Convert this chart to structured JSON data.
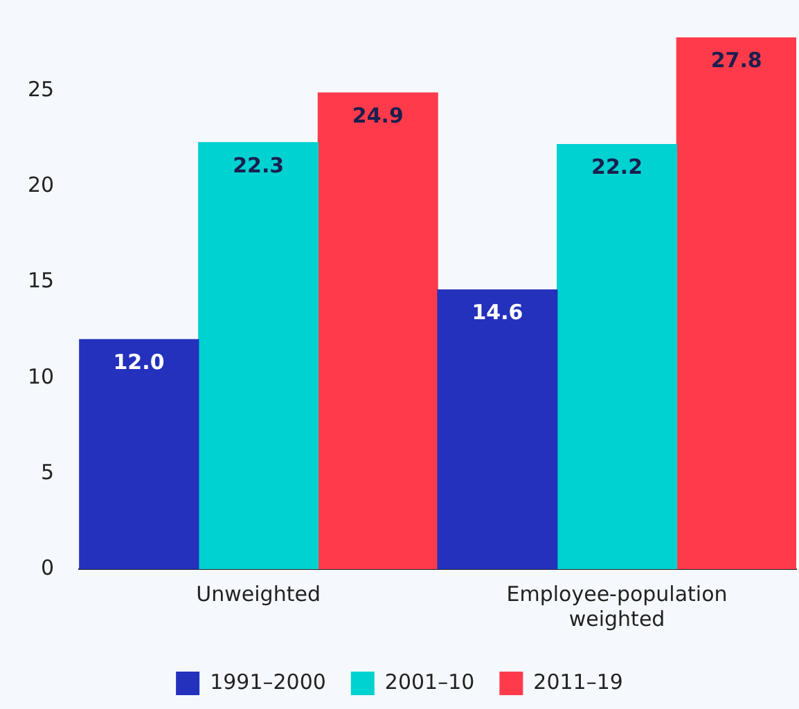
{
  "chart_data": {
    "type": "bar",
    "categories": [
      "Unweighted",
      "Employee-population weighted"
    ],
    "series": [
      {
        "name": "1991–2000",
        "color": "#2331bd",
        "values": [
          12.0,
          14.6
        ],
        "value_labels": [
          "12.0",
          "14.6"
        ]
      },
      {
        "name": "2001–10",
        "color": "#00d1d1",
        "values": [
          22.3,
          22.2
        ],
        "value_labels": [
          "22.3",
          "22.2"
        ]
      },
      {
        "name": "2011–19",
        "color": "#ff3b4b",
        "values": [
          24.9,
          27.8
        ],
        "value_labels": [
          "24.9",
          "27.8"
        ]
      }
    ],
    "ylim": [
      0,
      27.8
    ],
    "yticks": [
      0,
      5,
      10,
      15,
      20,
      25
    ],
    "grid": false,
    "legend": "bottom"
  }
}
